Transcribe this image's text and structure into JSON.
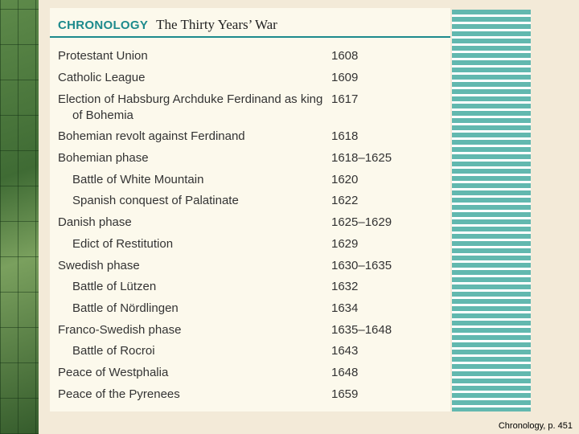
{
  "header": {
    "label": "CHRONOLOGY",
    "title": "The Thirty Years’ War"
  },
  "table": {
    "rows": [
      {
        "event": "Protestant Union",
        "date": "1608"
      },
      {
        "event": "Catholic League",
        "date": "1609"
      },
      {
        "event": "Election of Habsburg Archduke Ferdinand as king of Bohemia",
        "date": "1617"
      },
      {
        "event": "Bohemian revolt against Ferdinand",
        "date": "1618"
      },
      {
        "event": "Bohemian phase",
        "date": "1618–1625",
        "sub": [
          {
            "event": "Battle of White Mountain",
            "date": "1620"
          },
          {
            "event": "Spanish conquest of Palatinate",
            "date": "1622"
          }
        ]
      },
      {
        "event": "Danish phase",
        "date": "1625–1629",
        "sub": [
          {
            "event": "Edict of Restitution",
            "date": "1629"
          }
        ]
      },
      {
        "event": "Swedish phase",
        "date": "1630–1635",
        "sub": [
          {
            "event": "Battle of Lützen",
            "date": "1632"
          },
          {
            "event": "Battle of Nördlingen",
            "date": "1634"
          }
        ]
      },
      {
        "event": "Franco-Swedish phase",
        "date": "1635–1648",
        "sub": [
          {
            "event": "Battle of Rocroi",
            "date": "1643"
          }
        ]
      },
      {
        "event": "Peace of Westphalia",
        "date": "1648"
      },
      {
        "event": "Peace of the Pyrenees",
        "date": "1659"
      }
    ]
  },
  "footer": {
    "caption": "Chronology, p. 451"
  }
}
